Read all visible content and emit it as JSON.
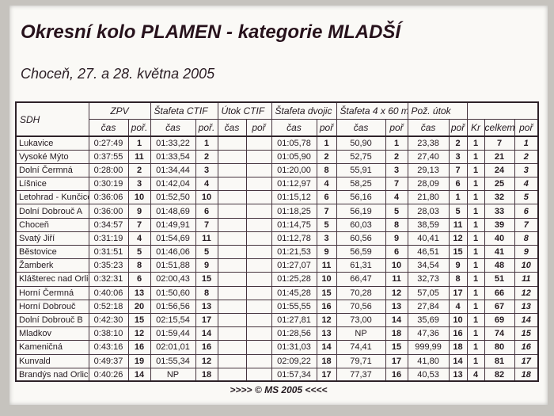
{
  "page": {
    "title": "Okresní kolo PLAMEN - kategorie MLADŠÍ",
    "subtitle": "Choceň, 27. a 28. května 2005",
    "footer": ">>>> © MS 2005 <<<<"
  },
  "table": {
    "sdh_label": "SDH",
    "group_headers": [
      {
        "label": "ZPV"
      },
      {
        "label": "Štafeta CTIF"
      },
      {
        "label": "Útok CTIF"
      },
      {
        "label": "Štafeta dvojic"
      },
      {
        "label": "Štafeta 4 x 60 m"
      },
      {
        "label": "Pož. útok"
      }
    ],
    "sub_headers": [
      "čas",
      "poř.",
      "čas",
      "poř.",
      "čas",
      "poř",
      "čas",
      "poř",
      "čas",
      "poř",
      "čas",
      "poř"
    ],
    "tail_headers": [
      "Kr",
      "celkem",
      "poř"
    ],
    "rows": [
      {
        "name": "Lukavice",
        "cells": [
          "0:27:49",
          "1",
          "01:33,22",
          "1",
          "",
          "",
          "01:05,78",
          "1",
          "50,90",
          "1",
          "23,38",
          "2",
          "1",
          "7",
          "1"
        ]
      },
      {
        "name": "Vysoké Mýto",
        "cells": [
          "0:37:55",
          "11",
          "01:33,54",
          "2",
          "",
          "",
          "01:05,90",
          "2",
          "52,75",
          "2",
          "27,40",
          "3",
          "1",
          "21",
          "2"
        ]
      },
      {
        "name": "Dolní Čermná",
        "cells": [
          "0:28:00",
          "2",
          "01:34,44",
          "3",
          "",
          "",
          "01:20,00",
          "8",
          "55,91",
          "3",
          "29,13",
          "7",
          "1",
          "24",
          "3"
        ]
      },
      {
        "name": "Líšnice",
        "cells": [
          "0:30:19",
          "3",
          "01:42,04",
          "4",
          "",
          "",
          "01:12,97",
          "4",
          "58,25",
          "7",
          "28,09",
          "6",
          "1",
          "25",
          "4"
        ]
      },
      {
        "name": "Letohrad - Kunčice",
        "cells": [
          "0:36:06",
          "10",
          "01:52,50",
          "10",
          "",
          "",
          "01:15,12",
          "6",
          "56,16",
          "4",
          "21,80",
          "1",
          "1",
          "32",
          "5"
        ]
      },
      {
        "name": "Dolní Dobrouč A",
        "cells": [
          "0:36:00",
          "9",
          "01:48,69",
          "6",
          "",
          "",
          "01:18,25",
          "7",
          "56,19",
          "5",
          "28,03",
          "5",
          "1",
          "33",
          "6"
        ]
      },
      {
        "name": "Choceň",
        "cells": [
          "0:34:57",
          "7",
          "01:49,91",
          "7",
          "",
          "",
          "01:14,75",
          "5",
          "60,03",
          "8",
          "38,59",
          "11",
          "1",
          "39",
          "7"
        ]
      },
      {
        "name": "Svatý Jiří",
        "cells": [
          "0:31:19",
          "4",
          "01:54,69",
          "11",
          "",
          "",
          "01:12,78",
          "3",
          "60,56",
          "9",
          "40,41",
          "12",
          "1",
          "40",
          "8"
        ]
      },
      {
        "name": "Běstovice",
        "cells": [
          "0:31:51",
          "5",
          "01:46,06",
          "5",
          "",
          "",
          "01:21,53",
          "9",
          "56,59",
          "6",
          "46,51",
          "15",
          "1",
          "41",
          "9"
        ]
      },
      {
        "name": "Žamberk",
        "cells": [
          "0:35:23",
          "8",
          "01:51,88",
          "9",
          "",
          "",
          "01:27,07",
          "11",
          "61,31",
          "10",
          "34,54",
          "9",
          "1",
          "48",
          "10"
        ]
      },
      {
        "name": "Klášterec nad Orlicí",
        "cells": [
          "0:32:31",
          "6",
          "02:00,43",
          "15",
          "",
          "",
          "01:25,28",
          "10",
          "66,47",
          "11",
          "32,73",
          "8",
          "1",
          "51",
          "11"
        ]
      },
      {
        "name": "Horní Čermná",
        "cells": [
          "0:40:06",
          "13",
          "01:50,60",
          "8",
          "",
          "",
          "01:45,28",
          "15",
          "70,28",
          "12",
          "57,05",
          "17",
          "1",
          "66",
          "12"
        ]
      },
      {
        "name": "Horní Dobrouč",
        "cells": [
          "0:52:18",
          "20",
          "01:56,56",
          "13",
          "",
          "",
          "01:55,55",
          "16",
          "70,56",
          "13",
          "27,84",
          "4",
          "1",
          "67",
          "13"
        ]
      },
      {
        "name": "Dolní Dobrouč B",
        "cells": [
          "0:42:30",
          "15",
          "02:15,54",
          "17",
          "",
          "",
          "01:27,81",
          "12",
          "73,00",
          "14",
          "35,69",
          "10",
          "1",
          "69",
          "14"
        ]
      },
      {
        "name": "Mladkov",
        "cells": [
          "0:38:10",
          "12",
          "01:59,44",
          "14",
          "",
          "",
          "01:28,56",
          "13",
          "NP",
          "18",
          "47,36",
          "16",
          "1",
          "74",
          "15"
        ]
      },
      {
        "name": "Kameničná",
        "cells": [
          "0:43:16",
          "16",
          "02:01,01",
          "16",
          "",
          "",
          "01:31,03",
          "14",
          "74,41",
          "15",
          "999,99",
          "18",
          "1",
          "80",
          "16"
        ]
      },
      {
        "name": "Kunvald",
        "cells": [
          "0:49:37",
          "19",
          "01:55,34",
          "12",
          "",
          "",
          "02:09,22",
          "18",
          "79,71",
          "17",
          "41,80",
          "14",
          "1",
          "81",
          "17"
        ]
      },
      {
        "name": "Brandýs nad Orlicí",
        "cells": [
          "0:40:26",
          "14",
          "NP",
          "18",
          "",
          "",
          "01:57,34",
          "17",
          "77,37",
          "16",
          "40,53",
          "13",
          "4",
          "82",
          "18"
        ]
      }
    ]
  }
}
